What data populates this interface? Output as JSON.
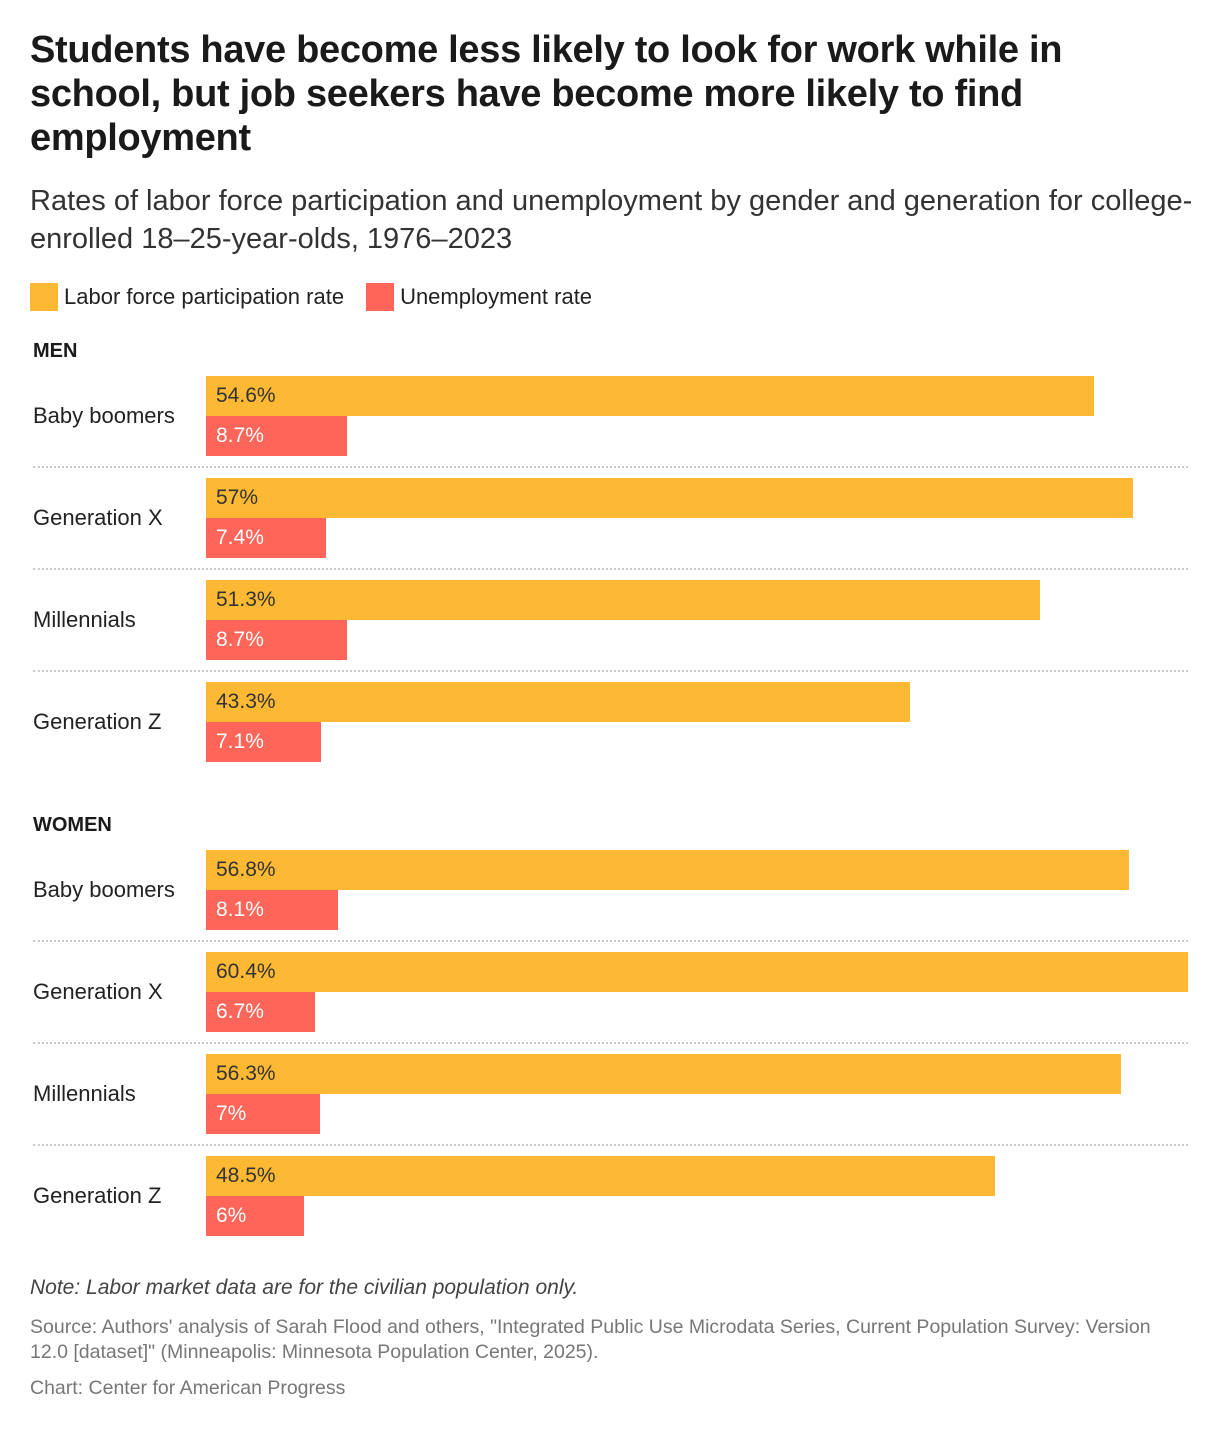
{
  "title": "Students have become less likely to look for work while in school, but job seekers have become more likely to find employment",
  "subtitle": "Rates of labor force participation and unemployment by gender and generation for college-enrolled 18–25-year-olds, 1976–2023",
  "legend": [
    {
      "label": "Labor force participation rate",
      "color": "#FDB933"
    },
    {
      "label": "Unemployment rate",
      "color": "#FF6659"
    }
  ],
  "chart_data": {
    "type": "bar",
    "orientation": "horizontal",
    "value_max": 60.4,
    "groups": [
      {
        "name": "MEN",
        "categories": [
          "Baby boomers",
          "Generation X",
          "Millennials",
          "Generation Z"
        ],
        "series": [
          {
            "name": "Labor force participation rate",
            "values": [
              54.6,
              57,
              51.3,
              43.3
            ],
            "labels": [
              "54.6%",
              "57%",
              "51.3%",
              "43.3%"
            ]
          },
          {
            "name": "Unemployment rate",
            "values": [
              8.7,
              7.4,
              8.7,
              7.1
            ],
            "labels": [
              "8.7%",
              "7.4%",
              "8.7%",
              "7.1%"
            ]
          }
        ]
      },
      {
        "name": "WOMEN",
        "categories": [
          "Baby boomers",
          "Generation X",
          "Millennials",
          "Generation Z"
        ],
        "series": [
          {
            "name": "Labor force participation rate",
            "values": [
              56.8,
              60.4,
              56.3,
              48.5
            ],
            "labels": [
              "56.8%",
              "60.4%",
              "56.3%",
              "48.5%"
            ]
          },
          {
            "name": "Unemployment rate",
            "values": [
              8.1,
              6.7,
              7,
              6
            ],
            "labels": [
              "8.1%",
              "6.7%",
              "7%",
              "6%"
            ]
          }
        ]
      }
    ]
  },
  "note": "Note: Labor market data are for the civilian population only.",
  "source": "Source: Authors' analysis of Sarah Flood and others, \"Integrated Public Use Microdata Series, Current Population Survey: Version 12.0 [dataset]\" (Minneapolis: Minnesota Population Center, 2025).",
  "credit": "Chart: Center for American Progress"
}
